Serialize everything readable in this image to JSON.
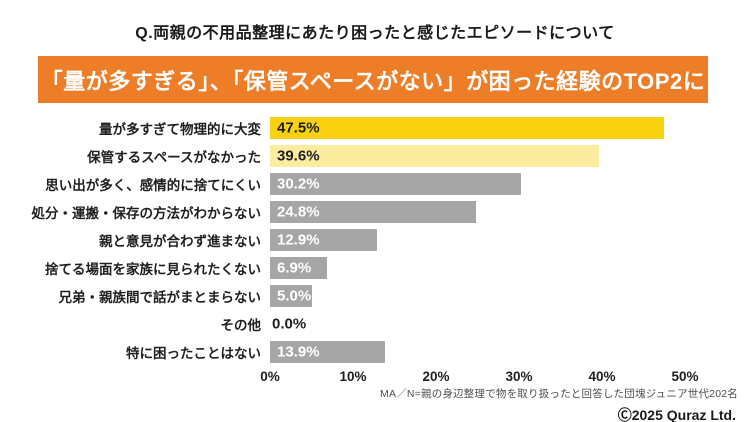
{
  "page": {
    "title": "Q.両親の不用品整理にあたり困ったと感じたエピソードについて",
    "banner": "「量が多すぎる」、「保管スペースがない」が困った経験のTOP2に",
    "footnote": "MA／N=親の身辺整理で物を取り扱ったと回答した団塊ジュニア世代202名",
    "copyright": "Ⓒ2025 Quraz Ltd."
  },
  "colors": {
    "banner_bg": "#EE7D28",
    "bar_gold": "#F8D211",
    "bar_light_yellow": "#FCEC9F",
    "bar_gray": "#A6A6A6",
    "text_dark": "#1f1f1f",
    "text_white": "#ffffff"
  },
  "chart_data": {
    "type": "bar",
    "orientation": "horizontal",
    "title": "Q.両親の不用品整理にあたり困ったと感じたエピソードについて",
    "subtitle": "「量が多すぎる」、「保管スペースがない」が困った経験のTOP2に",
    "categories": [
      "量が多すぎて物理的に大変",
      "保管するスペースがなかった",
      "思い出が多く、感情的に捨てにくい",
      "処分・運搬・保存の方法がわからない",
      "親と意見が合わず進まない",
      "捨てる場面を家族に見られたくない",
      "兄弟・親族間で話がまとまらない",
      "その他",
      "特に困ったことはない"
    ],
    "values": [
      47.5,
      39.6,
      30.2,
      24.8,
      12.9,
      6.9,
      5.0,
      0.0,
      13.9
    ],
    "value_labels": [
      "47.5%",
      "39.6%",
      "30.2%",
      "24.8%",
      "12.9%",
      "6.9%",
      "5.0%",
      "0.0%",
      "13.9%"
    ],
    "bar_colors": [
      "#F8D211",
      "#FCEC9F",
      "#A6A6A6",
      "#A6A6A6",
      "#A6A6A6",
      "#A6A6A6",
      "#A6A6A6",
      null,
      "#A6A6A6"
    ],
    "value_label_colors": [
      "#1f1f1f",
      "#1f1f1f",
      "#ffffff",
      "#ffffff",
      "#ffffff",
      "#ffffff",
      "#ffffff",
      "#1f1f1f",
      "#ffffff"
    ],
    "xlabel": "",
    "ylabel": "",
    "xlim": [
      0,
      50
    ],
    "x_ticks": [
      "0%",
      "10%",
      "20%",
      "30%",
      "40%",
      "50%"
    ],
    "grid": false,
    "legend": false,
    "annotation": "MA／N=親の身辺整理で物を取り扱ったと回答した団塊ジュニア世代202名"
  }
}
